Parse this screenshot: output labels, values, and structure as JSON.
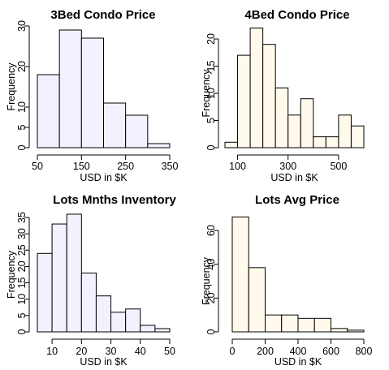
{
  "chart_data": [
    {
      "type": "bar",
      "title": "3Bed Condo Price",
      "xlabel": "USD in $K",
      "ylabel": "Frequency",
      "bar_color": "#f2f2ff",
      "bin_edges": [
        50,
        100,
        150,
        200,
        250,
        300,
        350
      ],
      "values": [
        18,
        29,
        27,
        11,
        8,
        1
      ],
      "xticks": [
        50,
        150,
        250,
        350
      ],
      "yticks": [
        0,
        5,
        10,
        20,
        30
      ],
      "xlim": [
        50,
        350
      ],
      "ylim": [
        0,
        30
      ]
    },
    {
      "type": "bar",
      "title": "4Bed Condo Price",
      "xlabel": "USD in $K",
      "ylabel": "Frequency",
      "bar_color": "#fffaeb",
      "bin_edges": [
        50,
        100,
        150,
        200,
        250,
        300,
        350,
        400,
        450,
        500,
        550,
        600
      ],
      "values": [
        1,
        17,
        22,
        19,
        11,
        6,
        9,
        2,
        2,
        6,
        4
      ],
      "xticks": [
        100,
        300,
        500
      ],
      "yticks": [
        0,
        5,
        10,
        15,
        20
      ],
      "xlim": [
        50,
        600
      ],
      "ylim": [
        0,
        20
      ]
    },
    {
      "type": "bar",
      "title": "Lots Mnths Inventory",
      "xlabel": "USD in $K",
      "ylabel": "Frequency",
      "bar_color": "#f2f2ff",
      "bin_edges": [
        5,
        10,
        15,
        20,
        25,
        30,
        35,
        40,
        45,
        50
      ],
      "values": [
        24,
        33,
        36,
        18,
        11,
        6,
        7,
        2,
        1
      ],
      "xticks": [
        10,
        20,
        30,
        40,
        50
      ],
      "yticks": [
        0,
        5,
        10,
        15,
        20,
        25,
        30,
        35
      ],
      "xlim": [
        5,
        50
      ],
      "ylim": [
        0,
        35
      ]
    },
    {
      "type": "bar",
      "title": "Lots Avg Price",
      "xlabel": "USD in $K",
      "ylabel": "Frequency",
      "bar_color": "#fffaeb",
      "bin_edges": [
        0,
        100,
        200,
        300,
        400,
        500,
        600,
        700,
        800
      ],
      "values": [
        68,
        38,
        10,
        10,
        8,
        8,
        2,
        1
      ],
      "xticks": [
        0,
        200,
        400,
        600,
        800
      ],
      "yticks": [
        0,
        20,
        40,
        60
      ],
      "xlim": [
        0,
        800
      ],
      "ylim": [
        0,
        60
      ]
    }
  ]
}
